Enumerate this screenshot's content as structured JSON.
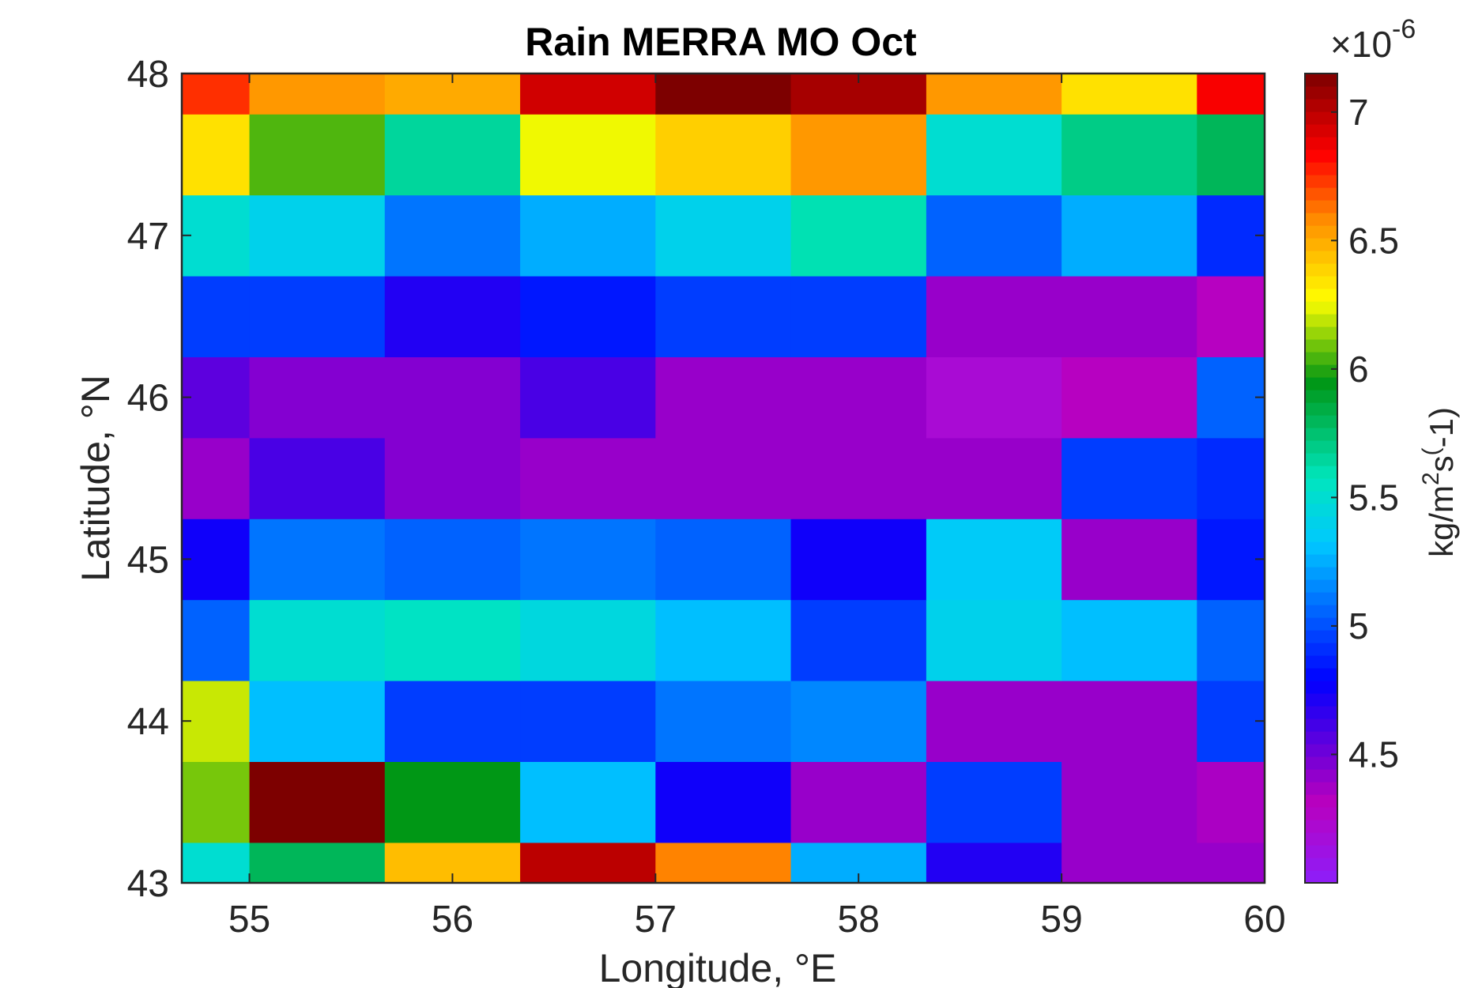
{
  "chart_data": {
    "type": "heatmap",
    "title": "Rain MERRA MO Oct",
    "xlabel": "Longitude, °E",
    "ylabel": "Latitude, °N",
    "colorbar": {
      "label_prefix": "kg/m",
      "label_sup": "2",
      "label_mid": "s",
      "label_paren": "(",
      "label_suffix": "-1)",
      "multiplier": "×10",
      "exponent": "-6",
      "ticks": [
        4.5,
        5,
        5.5,
        6,
        6.5,
        7
      ],
      "tick_labels": [
        "4.5",
        "5",
        "5.5",
        "6",
        "6.5",
        "7"
      ],
      "min": 4.0,
      "max": 7.15,
      "colormap": "jet-like (purple → blue → cyan → green → yellow → orange → red → dark red)"
    },
    "xticks": [
      55,
      56,
      57,
      58,
      59,
      60
    ],
    "xtick_labels": [
      "55",
      "56",
      "57",
      "58",
      "59",
      "60"
    ],
    "yticks": [
      43,
      44,
      45,
      46,
      47,
      48
    ],
    "ytick_labels": [
      "43",
      "44",
      "45",
      "46",
      "47",
      "48"
    ],
    "xlim": [
      54.667,
      60
    ],
    "ylim": [
      43,
      48
    ],
    "x_centers": [
      54.667,
      55.333,
      56.0,
      56.667,
      57.333,
      58.0,
      58.667,
      59.333,
      60.0
    ],
    "y_centers": [
      43.0,
      43.5,
      44.0,
      44.5,
      45.0,
      45.5,
      46.0,
      46.5,
      47.0,
      47.5,
      48.0
    ],
    "values": [
      [
        5.5,
        5.8,
        6.45,
        7.0,
        6.6,
        5.25,
        4.7,
        4.4,
        4.4
      ],
      [
        6.1,
        7.15,
        5.95,
        5.3,
        4.75,
        4.4,
        4.95,
        4.4,
        4.35
      ],
      [
        6.2,
        5.3,
        4.95,
        4.95,
        5.1,
        5.15,
        4.4,
        4.4,
        4.95
      ],
      [
        5.05,
        5.5,
        5.55,
        5.45,
        5.3,
        4.95,
        5.4,
        5.3,
        5.05
      ],
      [
        4.75,
        5.1,
        5.05,
        5.1,
        5.05,
        4.75,
        5.35,
        4.4,
        4.85
      ],
      [
        4.4,
        4.6,
        4.45,
        4.4,
        4.4,
        4.4,
        4.4,
        4.95,
        4.9
      ],
      [
        4.55,
        4.45,
        4.45,
        4.6,
        4.4,
        4.4,
        4.2,
        4.3,
        5.05
      ],
      [
        4.95,
        4.95,
        4.7,
        4.85,
        4.95,
        4.95,
        4.4,
        4.4,
        4.3
      ],
      [
        5.5,
        5.4,
        5.1,
        5.25,
        5.4,
        5.6,
        5.05,
        5.25,
        4.9
      ],
      [
        6.35,
        6.05,
        5.65,
        6.25,
        6.4,
        6.55,
        5.5,
        5.7,
        5.8
      ],
      [
        6.75,
        6.55,
        6.5,
        6.95,
        7.15,
        7.05,
        6.55,
        6.35,
        6.85
      ]
    ]
  }
}
